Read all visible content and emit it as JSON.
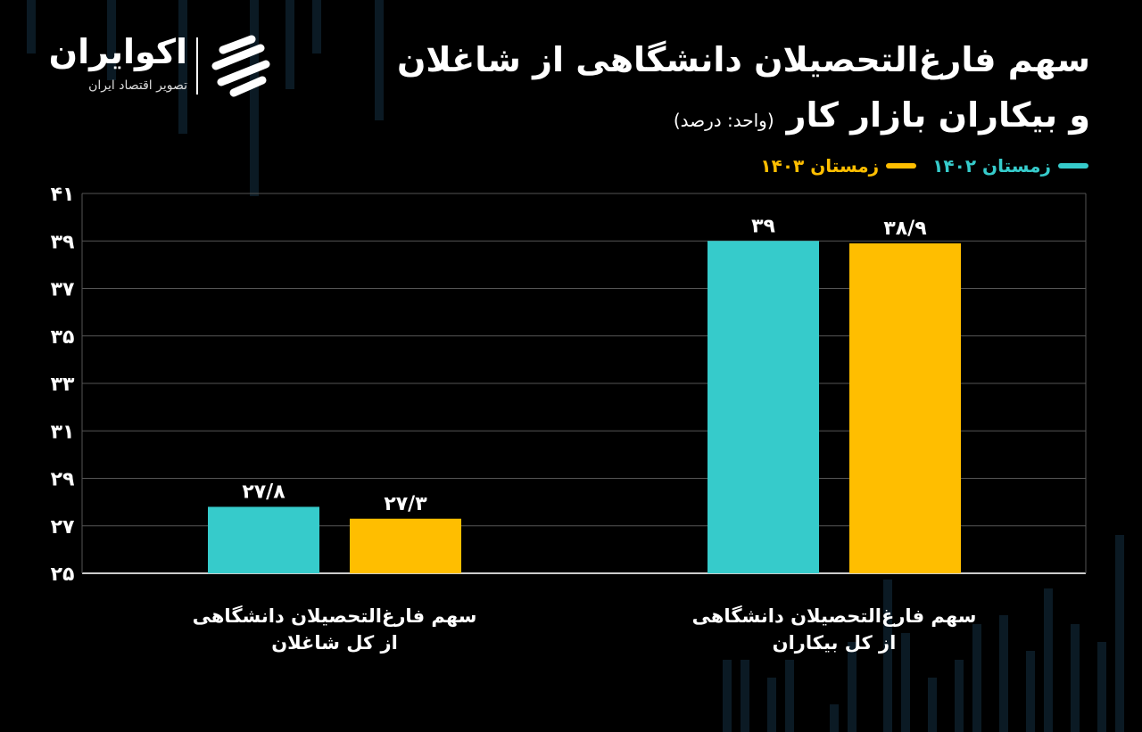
{
  "header": {
    "title_line1": "سهم فارغ‌التحصیلان دانشگاهی از شاغلان",
    "title_line2": "و بیکاران بازار کار",
    "unit_note": "(واحد: درصد)"
  },
  "logo": {
    "name": "اکوایران",
    "tagline": "تصویر اقتصاد ایران",
    "icon": "ecoiran-logo-icon"
  },
  "colors": {
    "background": "#000000",
    "series_1402": "#36CBCB",
    "series_1403": "#FFBE00",
    "grid": "#555555"
  },
  "chart_data": {
    "type": "bar",
    "categories": [
      "سهم فارغ‌التحصیلان دانشگاهی\nاز کل شاغلان",
      "سهم فارغ‌التحصیلان دانشگاهی\nاز کل بیکاران"
    ],
    "series": [
      {
        "name": "زمستان ۱۴۰۲",
        "values": [
          27.8,
          39
        ],
        "labels": [
          "۲۷/۸",
          "۳۹"
        ],
        "color": "#36CBCB"
      },
      {
        "name": "زمستان ۱۴۰۳",
        "values": [
          27.3,
          38.9
        ],
        "labels": [
          "۲۷/۳",
          "۳۸/۹"
        ],
        "color": "#FFBE00"
      }
    ],
    "ylim": [
      25,
      41
    ],
    "yticks": [
      25,
      27,
      29,
      31,
      33,
      35,
      37,
      39,
      41
    ],
    "ytick_labels": [
      "۲۵",
      "۲۷",
      "۲۹",
      "۳۱",
      "۳۳",
      "۳۵",
      "۳۷",
      "۳۹",
      "۴۱"
    ],
    "grid": true,
    "legend_position": "top-right",
    "xlabel": "",
    "ylabel": ""
  }
}
